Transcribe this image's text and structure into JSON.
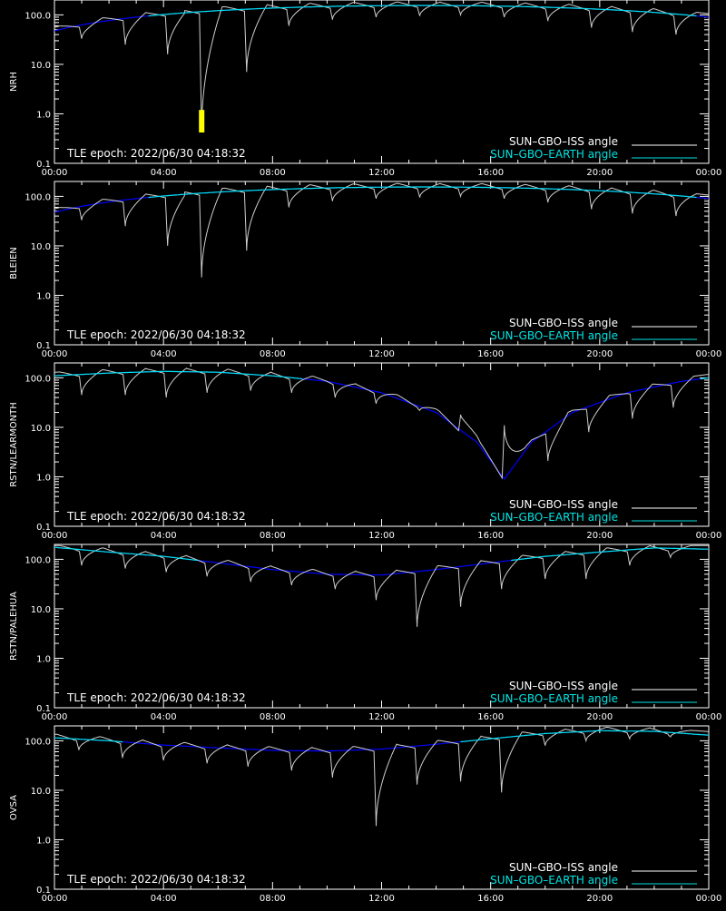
{
  "tle_text": "TLE epoch: 2022/06/30 04:18:32",
  "legend": {
    "iss_label": "SUN–GBO–ISS angle",
    "earth_label": "SUN–GBO–EARTH angle",
    "iss_color": "#ffffff",
    "earth_color": "#00e5e5",
    "earth_curve_color": "#0000ff",
    "highlight_color": "#ffff00"
  },
  "x_ticks": [
    "00:00",
    "04:00",
    "08:00",
    "12:00",
    "16:00",
    "20:00",
    "00:00"
  ],
  "y_ticks": [
    "100.0",
    "10.0",
    "1.0",
    "0.1"
  ],
  "chart_data": [
    {
      "type": "line",
      "station": "NRH",
      "yscale": "log",
      "ylim": [
        0.1,
        200
      ],
      "xlim_hours": [
        0,
        24
      ],
      "earth": {
        "min_hour": 13.5,
        "min": 155,
        "amp_at_ends": 70
      },
      "iss_dips_hours": [
        1.0,
        2.6,
        4.15,
        5.4,
        7.05,
        8.6,
        10.2,
        11.8,
        13.4,
        14.9,
        16.5,
        18.1,
        19.7,
        21.2,
        22.8
      ],
      "iss_dip_minima": [
        33,
        25,
        16,
        0.45,
        7,
        60,
        80,
        90,
        95,
        100,
        90,
        75,
        55,
        45,
        40
      ],
      "highlight_hours": [
        5.3,
        5.5
      ]
    },
    {
      "type": "line",
      "station": "BLEIEN",
      "yscale": "log",
      "ylim": [
        0.1,
        200
      ],
      "xlim_hours": [
        0,
        24
      ],
      "earth": {
        "min_hour": 13.5,
        "min": 155,
        "amp_at_ends": 70
      },
      "iss_dips_hours": [
        1.0,
        2.6,
        4.15,
        5.4,
        7.05,
        8.6,
        10.2,
        11.8,
        13.4,
        14.9,
        16.5,
        18.1,
        19.7,
        21.2,
        22.8
      ],
      "iss_dip_minima": [
        33,
        25,
        10,
        2.3,
        8,
        60,
        80,
        90,
        95,
        100,
        90,
        75,
        55,
        45,
        40
      ],
      "highlight_hours": []
    },
    {
      "type": "line",
      "station": "RSTN/LEARMONTH",
      "yscale": "log",
      "ylim": [
        0.1,
        200
      ],
      "xlim_hours": [
        0,
        24
      ],
      "earth_points": [
        [
          0,
          110
        ],
        [
          2,
          125
        ],
        [
          4,
          135
        ],
        [
          6,
          130
        ],
        [
          8,
          110
        ],
        [
          10,
          85
        ],
        [
          12,
          50
        ],
        [
          14,
          20
        ],
        [
          15.5,
          5
        ],
        [
          16.5,
          0.9
        ],
        [
          17.5,
          5
        ],
        [
          19,
          20
        ],
        [
          21,
          50
        ],
        [
          23,
          85
        ],
        [
          24,
          100
        ]
      ],
      "iss_dips_hours": [
        1.0,
        2.6,
        4.1,
        5.6,
        7.2,
        8.7,
        10.3,
        11.8,
        13.4,
        14.9,
        16.5,
        18.1,
        19.6,
        21.2,
        22.7
      ],
      "iss_dip_minima": [
        45,
        45,
        40,
        50,
        55,
        50,
        40,
        30,
        22,
        18,
        11,
        2.1,
        8,
        15,
        25
      ],
      "highlight_hours": []
    },
    {
      "type": "line",
      "station": "RSTN/PALEHUA",
      "yscale": "log",
      "ylim": [
        0.1,
        200
      ],
      "xlim_hours": [
        0,
        24
      ],
      "earth_points": [
        [
          0,
          175
        ],
        [
          2,
          140
        ],
        [
          4,
          115
        ],
        [
          6,
          85
        ],
        [
          8,
          62
        ],
        [
          10,
          50
        ],
        [
          12,
          48
        ],
        [
          14,
          62
        ],
        [
          16,
          85
        ],
        [
          18,
          115
        ],
        [
          20,
          140
        ],
        [
          22,
          170
        ],
        [
          24,
          160
        ]
      ],
      "iss_dips_hours": [
        1.0,
        2.6,
        4.1,
        5.6,
        7.2,
        8.7,
        10.3,
        11.8,
        13.3,
        14.9,
        16.4,
        18.0,
        19.5,
        21.1,
        22.6
      ],
      "iss_dip_minima": [
        75,
        65,
        55,
        45,
        35,
        30,
        25,
        15,
        4.3,
        11,
        25,
        40,
        40,
        75,
        110
      ],
      "highlight_hours": []
    },
    {
      "type": "line",
      "station": "OVSA",
      "yscale": "log",
      "ylim": [
        0.1,
        200
      ],
      "xlim_hours": [
        0,
        24
      ],
      "earth_points": [
        [
          0,
          115
        ],
        [
          2,
          100
        ],
        [
          4,
          82
        ],
        [
          6,
          72
        ],
        [
          8,
          64
        ],
        [
          10,
          62
        ],
        [
          12,
          68
        ],
        [
          14,
          85
        ],
        [
          16,
          110
        ],
        [
          18,
          140
        ],
        [
          20,
          160
        ],
        [
          22,
          155
        ],
        [
          24,
          130
        ]
      ],
      "iss_dips_hours": [
        0.9,
        2.5,
        4.0,
        5.6,
        7.1,
        8.7,
        10.2,
        11.8,
        13.3,
        14.9,
        16.4,
        18.0,
        19.5,
        21.1,
        22.6
      ],
      "iss_dip_minima": [
        65,
        45,
        40,
        35,
        30,
        25,
        18,
        1.9,
        13,
        15,
        9,
        80,
        100,
        110,
        120
      ],
      "highlight_hours": []
    }
  ]
}
